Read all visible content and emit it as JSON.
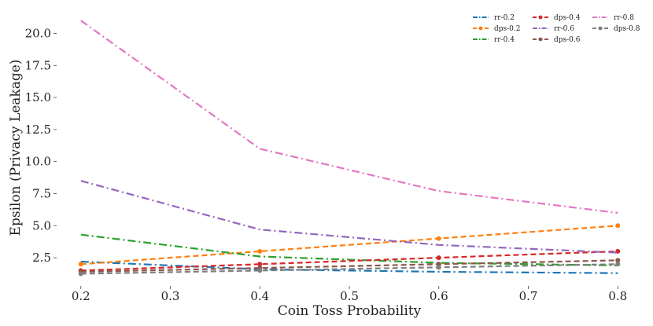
{
  "chart_data": {
    "type": "line",
    "title": "",
    "xlabel": "Coin Toss Probability",
    "ylabel": "Epsilon (Privacy Leakage)",
    "x": [
      0.2,
      0.4,
      0.6,
      0.8
    ],
    "xlim": [
      0.18,
      0.82
    ],
    "ylim": [
      0.3,
      21.5
    ],
    "xticks": [
      0.2,
      0.3,
      0.4,
      0.5,
      0.6,
      0.7,
      0.8
    ],
    "xtick_labels": [
      "0.2",
      "0.3",
      "0.4",
      "0.5",
      "0.6",
      "0.7",
      "0.8"
    ],
    "yticks": [
      2.5,
      5.0,
      7.5,
      10.0,
      12.5,
      15.0,
      17.5,
      20.0
    ],
    "ytick_labels": [
      "2.5",
      "5.0",
      "7.5",
      "10.0",
      "12.5",
      "15.0",
      "17.5",
      "20.0"
    ],
    "grid": false,
    "legend_position": "top-right",
    "series": [
      {
        "name": "rr-0.2",
        "values": [
          2.2,
          1.6,
          1.4,
          1.3
        ],
        "color": "#1f77b4",
        "style": "dashdot",
        "marker": false
      },
      {
        "name": "dps-0.2",
        "values": [
          2.0,
          3.0,
          4.0,
          5.0
        ],
        "color": "#ff7f0e",
        "style": "dashed",
        "marker": true
      },
      {
        "name": "rr-0.4",
        "values": [
          4.3,
          2.6,
          2.1,
          1.9
        ],
        "color": "#2ca02c",
        "style": "dashdot",
        "marker": false
      },
      {
        "name": "dps-0.4",
        "values": [
          1.5,
          2.0,
          2.5,
          3.0
        ],
        "color": "#d62728",
        "style": "dashed",
        "marker": true
      },
      {
        "name": "rr-0.6",
        "values": [
          8.5,
          4.7,
          3.5,
          2.9
        ],
        "color": "#9467bd",
        "style": "dashdot",
        "marker": false
      },
      {
        "name": "dps-0.6",
        "values": [
          1.4,
          1.7,
          2.0,
          2.3
        ],
        "color": "#8c564b",
        "style": "dashed",
        "marker": true
      },
      {
        "name": "rr-0.8",
        "values": [
          21.0,
          11.0,
          7.7,
          6.0
        ],
        "color": "#e377c2",
        "style": "dashdot",
        "marker": false
      },
      {
        "name": "dps-0.8",
        "values": [
          1.25,
          1.5,
          1.75,
          2.0
        ],
        "color": "#7f7f7f",
        "style": "dashed",
        "marker": true
      }
    ]
  }
}
